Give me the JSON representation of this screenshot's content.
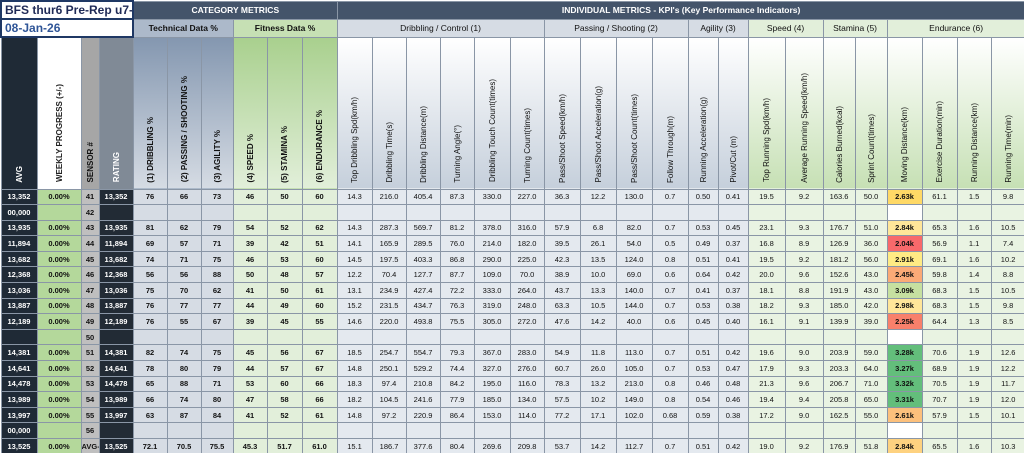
{
  "header": {
    "title": "BFS thur6 Pre-Rep u7-",
    "date": "08-Jan-26",
    "category_metrics": "CATEGORY METRICS",
    "individual_metrics": "INDIVIDUAL METRICS - KPI's (Key Performance Indicators)",
    "category_groups": [
      "Technical Data %",
      "Fitness Data %"
    ],
    "kpi_groups": [
      "Dribbling / Control (1)",
      "Passing / Shooting (2)",
      "Agility (3)",
      "Speed (4)",
      "Stamina (5)",
      "Endurance (6)"
    ]
  },
  "table": {
    "columns": [
      "AVG",
      "WEEKLY PROGRESS (+/-)",
      "SENSOR #",
      "RATING",
      "(1) DRIBBLING %",
      "(2) PASSING / SHOOTING %",
      "(3) AGILITY %",
      "(4) SPEED %",
      "(5) STAMINA %",
      "(6) ENDURANCE %",
      "Top Dribbling Spd(km/h)",
      "Dribbling Time(s)",
      "Dribbling Distance(m)",
      "Turning Angle(°)",
      "Dribbling Touch Count(times)",
      "Turning Count(times)",
      "Pass/Shoot Speed(km/h)",
      "Pass/Shoot Acceleration(g)",
      "Pass/Shoot Count(times)",
      "Follow Through(m)",
      "Running Acceleration(g)",
      "Pivot/Cut (m)",
      "Top Running Spd(km/h)",
      "Average Running Speed(km/h)",
      "Calories Burned(kcal)",
      "Sprint Count(times)",
      "Moving Distance(km)",
      "Exercise Duration(min)",
      "Running Distance(km)",
      "Running Time(min)"
    ],
    "rows": [
      [
        "13,352",
        "0.00%",
        "41",
        "13,352",
        "76",
        "66",
        "73",
        "46",
        "50",
        "60",
        "14.3",
        "216.0",
        "405.4",
        "87.3",
        "330.0",
        "227.0",
        "36.3",
        "12.2",
        "130.0",
        "0.7",
        "0.50",
        "0.41",
        "19.5",
        "9.2",
        "163.6",
        "50.0",
        "2.63k",
        "61.1",
        "1.5",
        "9.8"
      ],
      [
        "00,000",
        null,
        "42",
        null,
        null,
        null,
        null,
        null,
        null,
        null,
        null,
        null,
        null,
        null,
        null,
        null,
        null,
        null,
        null,
        null,
        null,
        null,
        null,
        null,
        null,
        null,
        null,
        null,
        null,
        null
      ],
      [
        "13,935",
        "0.00%",
        "43",
        "13,935",
        "81",
        "62",
        "79",
        "54",
        "52",
        "62",
        "14.3",
        "287.3",
        "569.7",
        "81.2",
        "378.0",
        "316.0",
        "57.9",
        "6.8",
        "82.0",
        "0.7",
        "0.53",
        "0.45",
        "23.1",
        "9.3",
        "176.7",
        "51.0",
        "2.84k",
        "65.3",
        "1.6",
        "10.5"
      ],
      [
        "11,894",
        "0.00%",
        "44",
        "11,894",
        "69",
        "57",
        "71",
        "39",
        "42",
        "51",
        "14.1",
        "165.9",
        "289.5",
        "76.0",
        "214.0",
        "182.0",
        "39.5",
        "26.1",
        "54.0",
        "0.5",
        "0.49",
        "0.37",
        "16.8",
        "8.9",
        "126.9",
        "36.0",
        "2.04k",
        "56.9",
        "1.1",
        "7.4"
      ],
      [
        "13,682",
        "0.00%",
        "45",
        "13,682",
        "74",
        "71",
        "75",
        "46",
        "53",
        "60",
        "14.5",
        "197.5",
        "403.3",
        "86.8",
        "290.0",
        "225.0",
        "42.3",
        "13.5",
        "124.0",
        "0.8",
        "0.51",
        "0.41",
        "19.5",
        "9.2",
        "181.2",
        "56.0",
        "2.91k",
        "69.1",
        "1.6",
        "10.2"
      ],
      [
        "12,368",
        "0.00%",
        "46",
        "12,368",
        "56",
        "56",
        "88",
        "50",
        "48",
        "57",
        "12.2",
        "70.4",
        "127.7",
        "87.7",
        "109.0",
        "70.0",
        "38.9",
        "10.0",
        "69.0",
        "0.6",
        "0.64",
        "0.42",
        "20.0",
        "9.6",
        "152.6",
        "43.0",
        "2.45k",
        "59.8",
        "1.4",
        "8.8"
      ],
      [
        "13,036",
        "0.00%",
        "47",
        "13,036",
        "75",
        "70",
        "62",
        "41",
        "50",
        "61",
        "13.1",
        "234.9",
        "427.4",
        "72.2",
        "333.0",
        "264.0",
        "43.7",
        "13.3",
        "140.0",
        "0.7",
        "0.41",
        "0.37",
        "18.1",
        "8.8",
        "191.9",
        "43.0",
        "3.09k",
        "68.3",
        "1.5",
        "10.5"
      ],
      [
        "13,887",
        "0.00%",
        "48",
        "13,887",
        "76",
        "77",
        "77",
        "44",
        "49",
        "60",
        "15.2",
        "231.5",
        "434.7",
        "76.3",
        "319.0",
        "248.0",
        "63.3",
        "10.5",
        "144.0",
        "0.7",
        "0.53",
        "0.38",
        "18.2",
        "9.3",
        "185.0",
        "42.0",
        "2.98k",
        "68.3",
        "1.5",
        "9.8"
      ],
      [
        "12,189",
        "0.00%",
        "49",
        "12,189",
        "76",
        "55",
        "67",
        "39",
        "45",
        "55",
        "14.6",
        "220.0",
        "493.8",
        "75.5",
        "305.0",
        "272.0",
        "47.6",
        "14.2",
        "40.0",
        "0.6",
        "0.45",
        "0.40",
        "16.1",
        "9.1",
        "139.9",
        "39.0",
        "2.25k",
        "64.4",
        "1.3",
        "8.5"
      ],
      [
        null,
        null,
        "50",
        null,
        null,
        null,
        null,
        null,
        null,
        null,
        null,
        null,
        null,
        null,
        null,
        null,
        null,
        null,
        null,
        null,
        null,
        null,
        null,
        null,
        null,
        null,
        null,
        null,
        null,
        null
      ],
      [
        "14,381",
        "0.00%",
        "51",
        "14,381",
        "82",
        "74",
        "75",
        "45",
        "56",
        "67",
        "18.5",
        "254.7",
        "554.7",
        "79.3",
        "367.0",
        "283.0",
        "54.9",
        "11.8",
        "113.0",
        "0.7",
        "0.51",
        "0.42",
        "19.6",
        "9.0",
        "203.9",
        "59.0",
        "3.28k",
        "70.6",
        "1.9",
        "12.6"
      ],
      [
        "14,641",
        "0.00%",
        "52",
        "14,641",
        "78",
        "80",
        "79",
        "44",
        "57",
        "67",
        "14.8",
        "250.1",
        "529.2",
        "74.4",
        "327.0",
        "276.0",
        "60.7",
        "26.0",
        "105.0",
        "0.7",
        "0.53",
        "0.47",
        "17.9",
        "9.3",
        "203.3",
        "64.0",
        "3.27k",
        "68.9",
        "1.9",
        "12.2"
      ],
      [
        "14,478",
        "0.00%",
        "53",
        "14,478",
        "65",
        "88",
        "71",
        "53",
        "60",
        "66",
        "18.3",
        "97.4",
        "210.8",
        "84.2",
        "195.0",
        "116.0",
        "78.3",
        "13.2",
        "213.0",
        "0.8",
        "0.46",
        "0.48",
        "21.3",
        "9.6",
        "206.7",
        "71.0",
        "3.32k",
        "70.5",
        "1.9",
        "11.7"
      ],
      [
        "13,989",
        "0.00%",
        "54",
        "13,989",
        "66",
        "74",
        "80",
        "47",
        "58",
        "66",
        "18.2",
        "104.5",
        "241.6",
        "77.9",
        "185.0",
        "134.0",
        "57.5",
        "10.2",
        "149.0",
        "0.8",
        "0.54",
        "0.46",
        "19.4",
        "9.4",
        "205.8",
        "65.0",
        "3.31k",
        "70.7",
        "1.9",
        "12.0"
      ],
      [
        "13,997",
        "0.00%",
        "55",
        "13,997",
        "63",
        "87",
        "84",
        "41",
        "52",
        "61",
        "14.8",
        "97.2",
        "220.9",
        "86.4",
        "153.0",
        "114.0",
        "77.2",
        "17.1",
        "102.0",
        "0.68",
        "0.59",
        "0.38",
        "17.2",
        "9.0",
        "162.5",
        "55.0",
        "2.61k",
        "57.9",
        "1.5",
        "10.1"
      ],
      [
        "00,000",
        null,
        "56",
        null,
        null,
        null,
        null,
        null,
        null,
        null,
        null,
        null,
        null,
        null,
        null,
        null,
        null,
        null,
        null,
        null,
        null,
        null,
        null,
        null,
        null,
        null,
        null,
        null,
        null,
        null
      ],
      [
        "13,525",
        "0.00%",
        "AVG-",
        "13,525",
        "72.1",
        "70.5",
        "75.5",
        "45.3",
        "51.7",
        "61.0",
        "15.1",
        "186.7",
        "377.6",
        "80.4",
        "269.6",
        "209.8",
        "53.7",
        "14.2",
        "112.7",
        "0.7",
        "0.51",
        "0.42",
        "19.0",
        "9.2",
        "176.9",
        "51.8",
        "2.84k",
        "65.5",
        "1.6",
        "10.3"
      ]
    ]
  }
}
